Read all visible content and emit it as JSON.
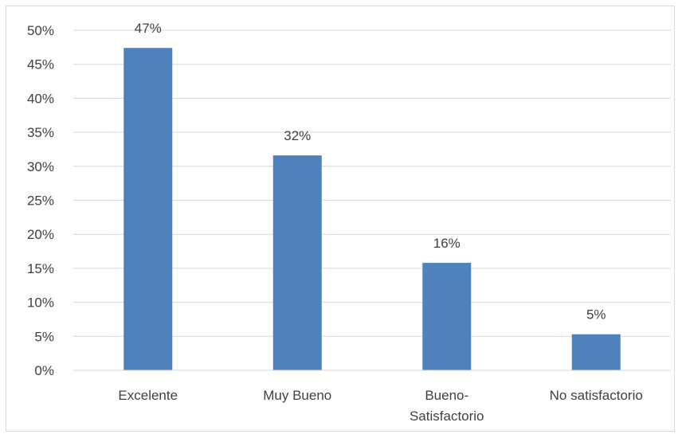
{
  "chart_data": {
    "type": "bar",
    "categories": [
      "Excelente",
      "Muy Bueno",
      "Bueno-Satisfactorio",
      "No satisfactorio"
    ],
    "category_lines": [
      [
        "Excelente"
      ],
      [
        "Muy Bueno"
      ],
      [
        "Bueno-",
        "Satisfactorio"
      ],
      [
        "No satisfactorio"
      ]
    ],
    "values": [
      47.4,
      31.6,
      15.8,
      5.3
    ],
    "data_labels": [
      "47%",
      "32%",
      "16%",
      "5%"
    ],
    "y_ticks": [
      "0%",
      "5%",
      "10%",
      "15%",
      "20%",
      "25%",
      "30%",
      "35%",
      "40%",
      "45%",
      "50%"
    ],
    "ylim": [
      0,
      50
    ],
    "grid": true,
    "legend": "none",
    "bar_color": "#4f81bd",
    "grid_color": "#d9d9d9",
    "axis_color": "#d9d9d9",
    "text_color": "#404040",
    "title": "",
    "xlabel": "",
    "ylabel": ""
  }
}
